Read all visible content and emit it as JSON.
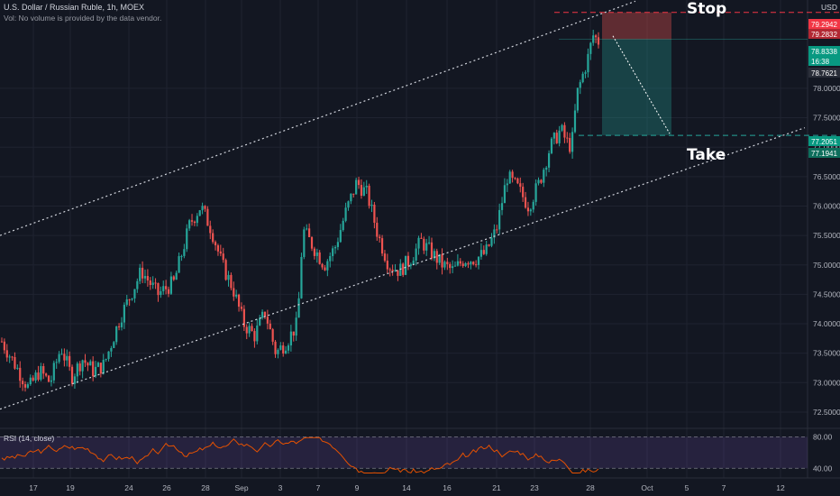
{
  "header": {
    "title": "U.S. Dollar / Russian Ruble, 1h, MOEX",
    "note": "Vol: No volume is provided by the data vendor.",
    "currency": "USD"
  },
  "annotations": {
    "stop": "Stop",
    "take": "Take"
  },
  "rsi": {
    "label": "RSI (14, close)",
    "upper": "80.00",
    "lower": "40.00"
  },
  "price_tags": [
    {
      "text": "79.2942",
      "value": 79.2942,
      "color": "#f23645"
    },
    {
      "text": "79.2832",
      "value": 79.2832,
      "color": "#b22833"
    },
    {
      "text": "78.8338",
      "value": 78.8338,
      "color": "#089981"
    },
    {
      "text": "16:38",
      "value": 78.71,
      "color": "#089981"
    },
    {
      "text": "78.7621",
      "value": 78.7621,
      "color": "#2a2e39"
    },
    {
      "text": "77.2051",
      "value": 77.2051,
      "color": "#089981"
    },
    {
      "text": "77.1941",
      "value": 77.1941,
      "color": "#0e6e5c"
    }
  ],
  "colors": {
    "up": "#26a69a",
    "down": "#ef5350",
    "stop_zone": "#ef5350",
    "take_zone": "#26a69a",
    "rsi_line": "#e65100"
  },
  "chart_data": {
    "type": "candlestick",
    "symbol": "USDRUB",
    "interval": "1h",
    "ylim": [
      72.3,
      79.5
    ],
    "y_ticks": [
      "72.5000",
      "73.0000",
      "73.5000",
      "74.0000",
      "74.5000",
      "75.0000",
      "75.5000",
      "76.0000",
      "76.5000",
      "77.0000",
      "77.5000",
      "78.0000"
    ],
    "x_tick_labels": [
      "17",
      "19",
      "24",
      "26",
      "28",
      "Sep",
      "3",
      "7",
      "9",
      "14",
      "16",
      "21",
      "23",
      "28",
      "Oct",
      "5",
      "7",
      "12"
    ],
    "price_path": [
      [
        0,
        73.7
      ],
      [
        5,
        73.3
      ],
      [
        10,
        72.9
      ],
      [
        14,
        73.2
      ],
      [
        18,
        73.0
      ],
      [
        22,
        73.6
      ],
      [
        26,
        73.1
      ],
      [
        30,
        73.4
      ],
      [
        34,
        73.2
      ],
      [
        38,
        73.3
      ],
      [
        44,
        74.1
      ],
      [
        52,
        74.9
      ],
      [
        58,
        74.5
      ],
      [
        64,
        74.7
      ],
      [
        70,
        75.7
      ],
      [
        74,
        76.0
      ],
      [
        78,
        75.6
      ],
      [
        82,
        75.0
      ],
      [
        86,
        74.6
      ],
      [
        90,
        74.0
      ],
      [
        94,
        73.8
      ],
      [
        98,
        74.2
      ],
      [
        102,
        73.5
      ],
      [
        106,
        73.7
      ],
      [
        110,
        74.0
      ],
      [
        112,
        75.6
      ],
      [
        116,
        75.3
      ],
      [
        120,
        75.0
      ],
      [
        124,
        75.3
      ],
      [
        128,
        75.9
      ],
      [
        132,
        76.4
      ],
      [
        136,
        76.2
      ],
      [
        140,
        75.5
      ],
      [
        144,
        75.0
      ],
      [
        148,
        74.9
      ],
      [
        152,
        75.1
      ],
      [
        156,
        75.4
      ],
      [
        160,
        75.2
      ],
      [
        164,
        75.0
      ],
      [
        168,
        74.9
      ],
      [
        172,
        75.1
      ],
      [
        176,
        75.1
      ],
      [
        180,
        75.2
      ],
      [
        184,
        75.6
      ],
      [
        188,
        76.5
      ],
      [
        192,
        76.3
      ],
      [
        196,
        76.0
      ],
      [
        200,
        76.4
      ],
      [
        204,
        77.0
      ],
      [
        208,
        77.3
      ],
      [
        210,
        77.1
      ],
      [
        212,
        77.0
      ],
      [
        214,
        77.9
      ],
      [
        216,
        78.2
      ],
      [
        218,
        78.5
      ],
      [
        220,
        78.9
      ],
      [
        222,
        78.8
      ]
    ],
    "trend_channel": {
      "upper": {
        "from": [
          "start",
          75.5
        ],
        "to": [
          "28 Sep",
          79.3
        ]
      },
      "lower": {
        "from": [
          "start",
          72.55
        ],
        "to": [
          "12 Oct",
          77.3
        ]
      }
    },
    "position": {
      "entry": 78.83,
      "stop": 79.29,
      "take": 77.2
    },
    "rsi_series_range": [
      30,
      80
    ]
  }
}
